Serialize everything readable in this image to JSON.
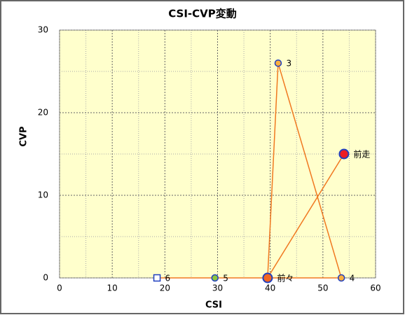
{
  "chart_data": {
    "type": "line-scatter",
    "title": "CSI-CVP変動",
    "x_label": "CSI",
    "y_label": "CVP",
    "labels": [
      "6",
      "5",
      "4",
      "3",
      "前々",
      "前走"
    ],
    "x": [
      18.5,
      29.5,
      53.5,
      41.5,
      39.5,
      54
    ],
    "y": [
      0,
      0,
      0,
      26,
      0,
      15
    ],
    "marker_colors": [
      "#ffffff",
      "#8cc63f",
      "#fbb040",
      "#fbb040",
      "#f26522",
      "#ed1c24"
    ],
    "marker_shapes": [
      "square",
      "circle",
      "circle",
      "circle",
      "circle",
      "circle"
    ],
    "line_color": "#f07820",
    "xlim": [
      0,
      60
    ],
    "xticks": [
      0,
      10,
      20,
      30,
      40,
      50,
      60
    ],
    "ylim": [
      0,
      30
    ],
    "yticks": [
      0,
      10,
      20,
      30
    ],
    "grid": true,
    "background": "#ffffcc"
  }
}
